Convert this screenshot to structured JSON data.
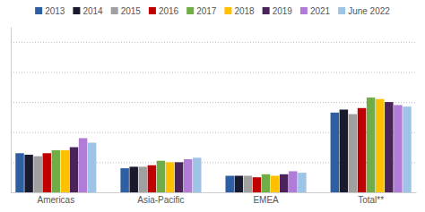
{
  "chart_data": {
    "type": "bar",
    "categories": [
      "Americas",
      "Asia-Pacific",
      "EMEA",
      "Total**"
    ],
    "series": [
      {
        "name": "2013",
        "color": "#2e5fa3",
        "values": [
          26,
          16,
          11,
          53
        ]
      },
      {
        "name": "2014",
        "color": "#1a1a2e",
        "values": [
          25,
          17,
          11,
          55
        ]
      },
      {
        "name": "2015",
        "color": "#a0a0a0",
        "values": [
          24,
          17,
          11,
          52
        ]
      },
      {
        "name": "2016",
        "color": "#c00000",
        "values": [
          26,
          18,
          10,
          56
        ]
      },
      {
        "name": "2017",
        "color": "#70ad47",
        "values": [
          28,
          21,
          12,
          63
        ]
      },
      {
        "name": "2018",
        "color": "#ffc000",
        "values": [
          28,
          20,
          11,
          62
        ]
      },
      {
        "name": "2019",
        "color": "#4a235a",
        "values": [
          30,
          20,
          12,
          60
        ]
      },
      {
        "name": "2021",
        "color": "#b07cd8",
        "values": [
          36,
          22,
          14,
          58
        ]
      },
      {
        "name": "June 2022",
        "color": "#9dc3e6",
        "values": [
          33,
          23,
          13,
          57
        ]
      }
    ],
    "ylim": [
      0,
      110
    ],
    "yticks": [
      0,
      20,
      40,
      60,
      80,
      100
    ],
    "grid": true,
    "legend": "top",
    "tick_labels": "x"
  }
}
